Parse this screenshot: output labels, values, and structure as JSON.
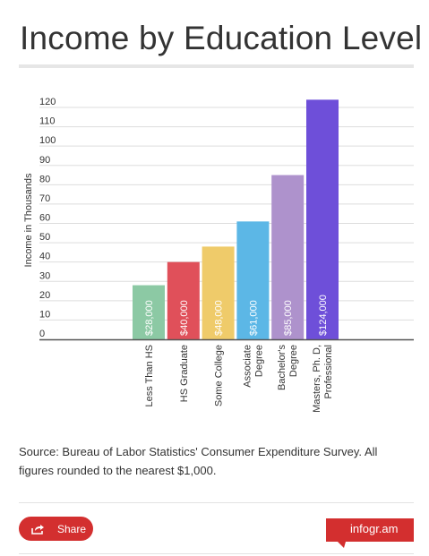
{
  "title": "Income by Education Level",
  "source": "Source: Bureau of Labor Statistics' Consumer Expenditure Survey. All figures rounded to the nearest $1,000.",
  "share_label": "Share",
  "brand": "infogr.am",
  "colors": {
    "accent": "#d32f2f",
    "grid": "#dddddd",
    "axis": "#555555"
  },
  "chart_data": {
    "type": "bar",
    "ylabel": "Income in Thousands",
    "xlabel": "",
    "ylim": [
      0,
      120
    ],
    "yticks": [
      0,
      10,
      20,
      30,
      40,
      50,
      60,
      70,
      80,
      90,
      100,
      110,
      120
    ],
    "grid": true,
    "categories": [
      [
        "Less Than HS"
      ],
      [
        "HS Graduate"
      ],
      [
        "Some College"
      ],
      [
        "Associate",
        "Degree"
      ],
      [
        "Bachelor's",
        "Degree"
      ],
      [
        "Masters, Ph. D,",
        "Professional"
      ]
    ],
    "values": [
      28,
      40,
      48,
      61,
      85,
      124
    ],
    "data_labels": [
      "$28,000",
      "$40,000",
      "$48,000",
      "$61,000",
      "$85,000",
      "$124,000"
    ],
    "colors": [
      "#8cc9a4",
      "#e0505a",
      "#efcb6a",
      "#5cb7e6",
      "#ae92cc",
      "#6e4fd9"
    ]
  }
}
